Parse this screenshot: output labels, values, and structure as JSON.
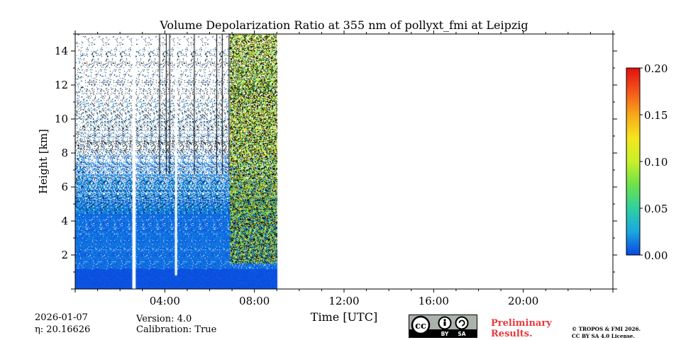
{
  "chart_data": {
    "type": "heatmap",
    "title": "Volume Depolarization Ratio at 355 nm of pollyxt_fmi at Leipzig",
    "xlabel": "Time [UTC]",
    "ylabel": "Height [km]",
    "xlim_hours": [
      0,
      24
    ],
    "ylim_km": [
      0,
      15
    ],
    "x_ticks": [
      {
        "hour": 4,
        "label": "04:00"
      },
      {
        "hour": 8,
        "label": "08:00"
      },
      {
        "hour": 12,
        "label": "12:00"
      },
      {
        "hour": 16,
        "label": "16:00"
      },
      {
        "hour": 20,
        "label": "20:00"
      }
    ],
    "y_ticks": [
      {
        "km": 2,
        "label": "2"
      },
      {
        "km": 4,
        "label": "4"
      },
      {
        "km": 6,
        "label": "6"
      },
      {
        "km": 8,
        "label": "8"
      },
      {
        "km": 10,
        "label": "10"
      },
      {
        "km": 12,
        "label": "12"
      },
      {
        "km": 14,
        "label": "14"
      }
    ],
    "colorbar": {
      "min": 0.0,
      "max": 0.2,
      "ticks": [
        {
          "value": 0.0,
          "label": "0.00"
        },
        {
          "value": 0.05,
          "label": "0.05"
        },
        {
          "value": 0.1,
          "label": "0.10"
        },
        {
          "value": 0.15,
          "label": "0.15"
        },
        {
          "value": 0.2,
          "label": "0.20"
        }
      ],
      "colors": [
        "#0a47e0",
        "#1aa8e0",
        "#2fd0a0",
        "#6de24a",
        "#c8f02a",
        "#f4e61e",
        "#f7a81a",
        "#f5561a",
        "#e01010"
      ]
    },
    "data_end_hour": 9.0,
    "gaps_hours": [
      {
        "start": 2.55,
        "end": 2.7,
        "from_km": 0.0
      },
      {
        "start": 4.45,
        "end": 4.55,
        "from_km": 0.8
      }
    ],
    "profile_lines_hours": [
      3.75,
      4.05,
      4.2,
      5.3,
      6.3,
      6.55,
      6.85
    ],
    "aerosol_region": {
      "start_hour": 6.9,
      "end_hour": 9.0,
      "description_values": [
        0.05,
        0.15
      ]
    }
  },
  "meta": {
    "date": "2026-01-07",
    "eta_label": "η: 20.16626",
    "version": "Version: 4.0",
    "calibration": "Calibration: True"
  },
  "license": {
    "cc_text": "cc",
    "by_text": "BY",
    "sa_text": "SA",
    "preliminary_line1": "Preliminary",
    "preliminary_line2": "Results.",
    "copyright_line1": "© TROPOS & FMI 2026.",
    "copyright_line2": "CC BY SA 4.0 License."
  }
}
